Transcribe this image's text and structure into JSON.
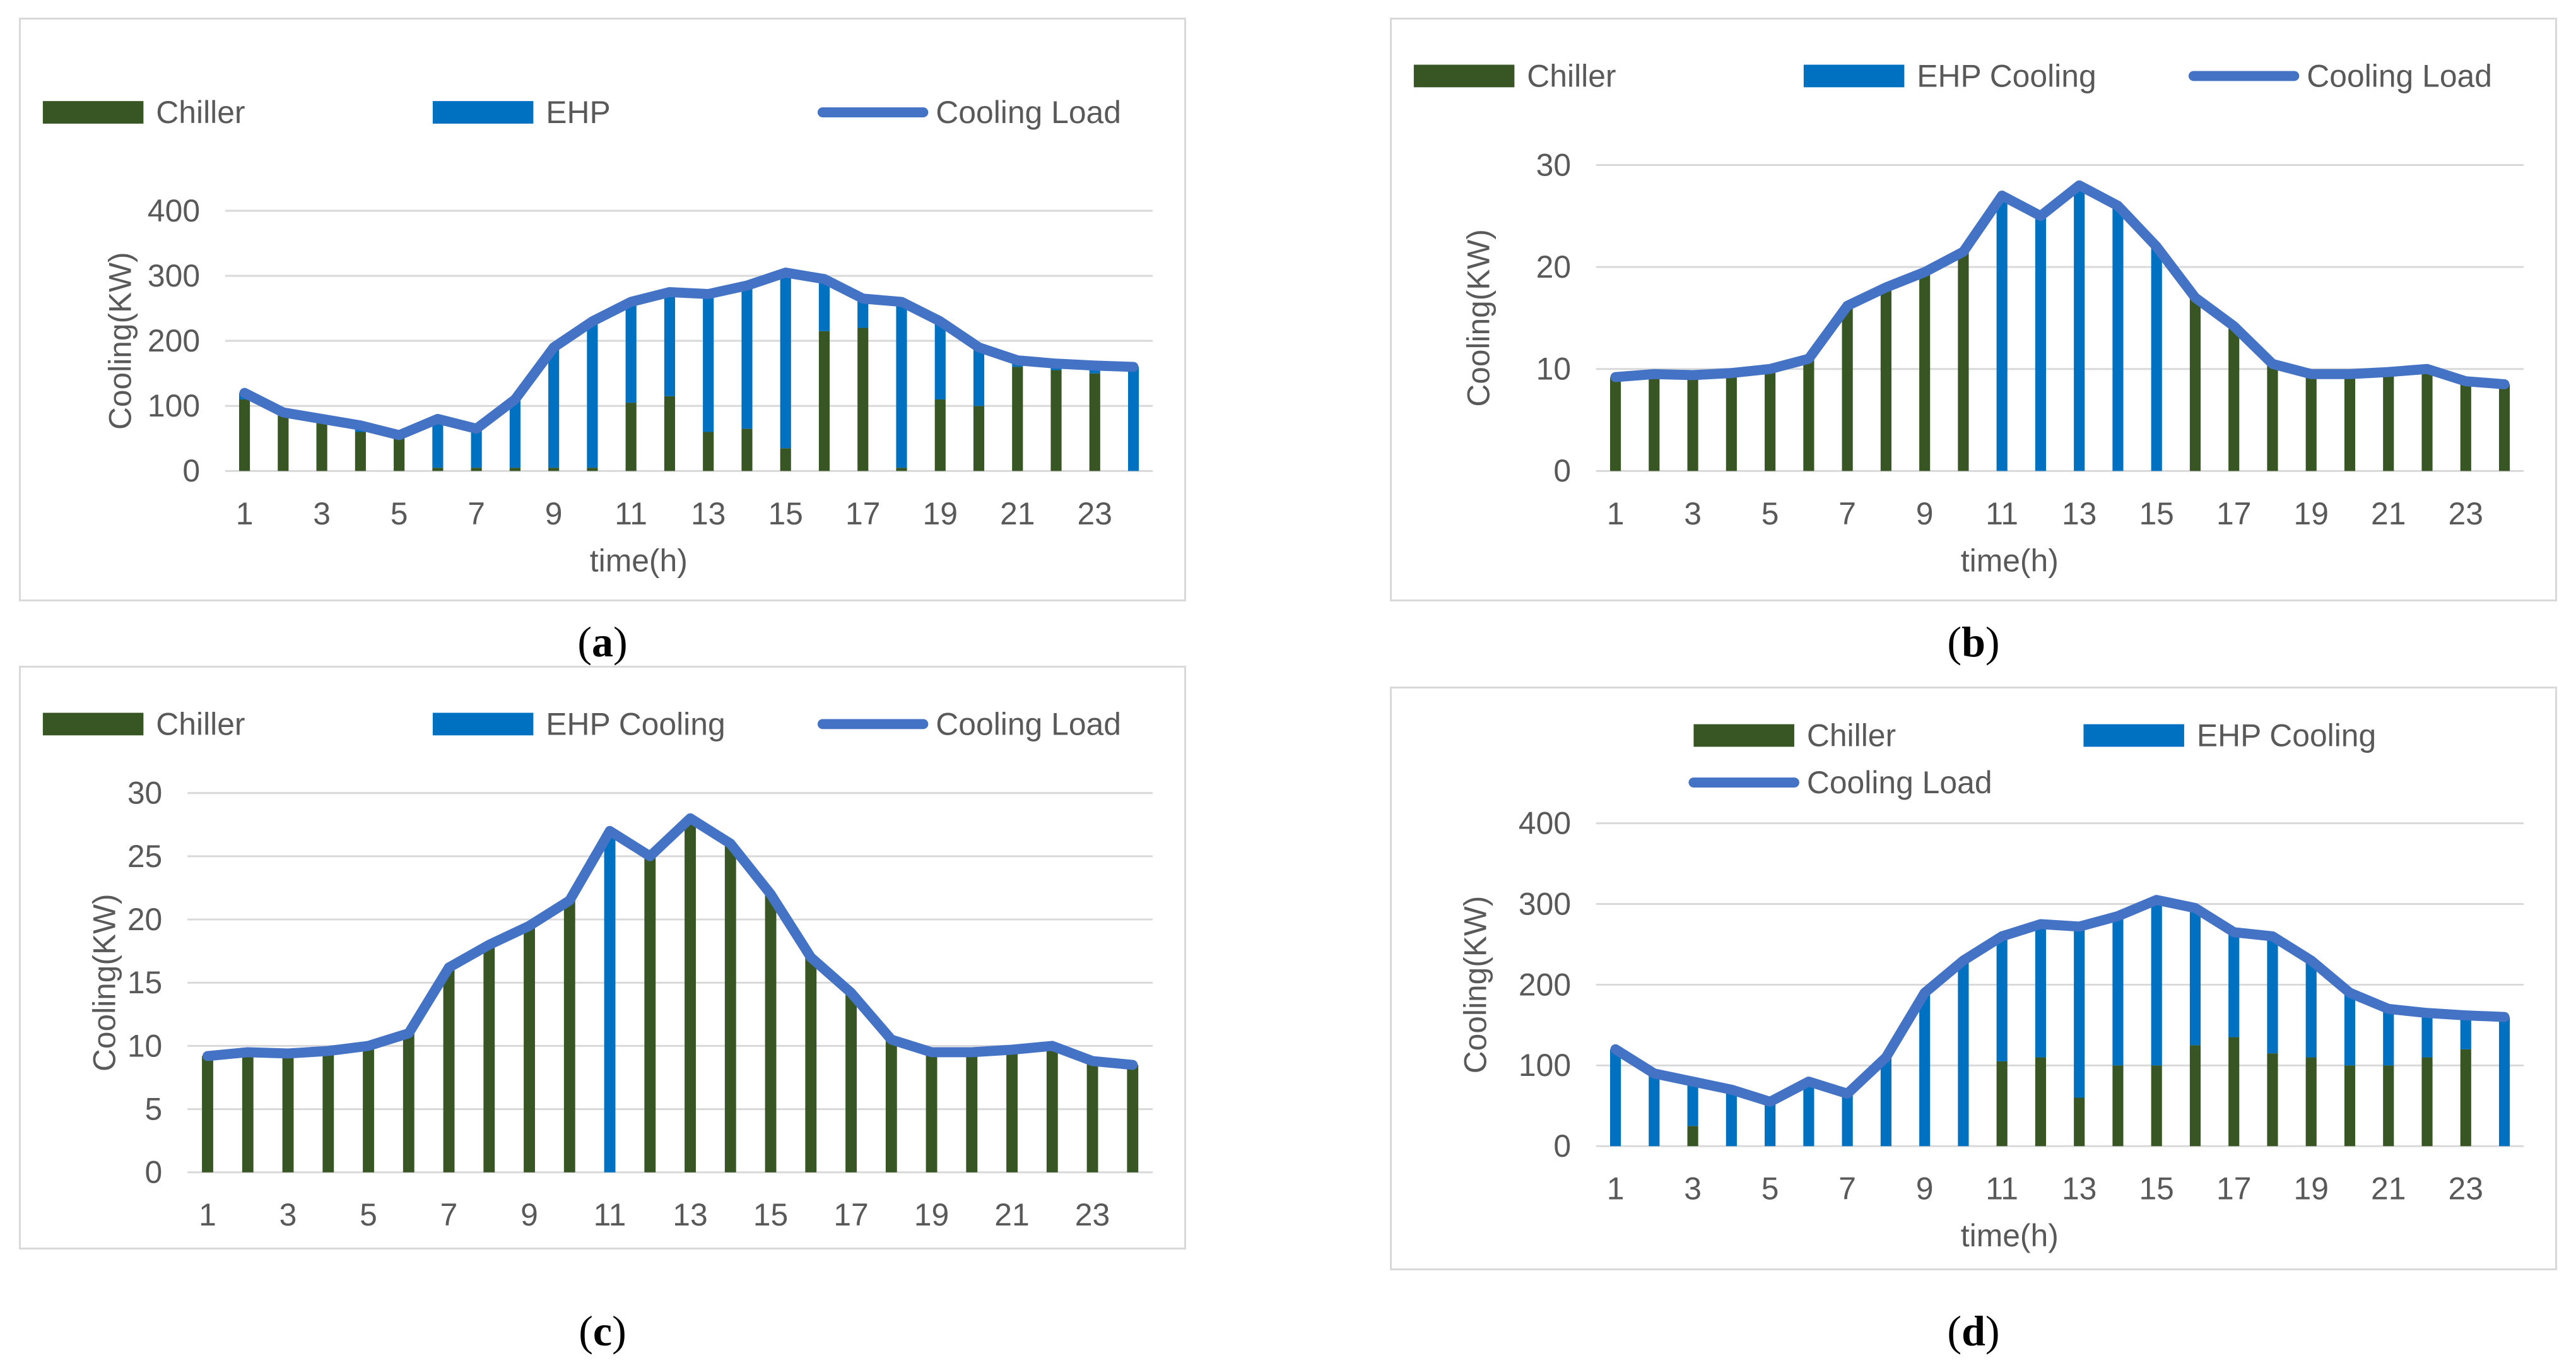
{
  "chart_data": [
    {
      "id": "a",
      "caption": "a",
      "type": "bar",
      "xlabel": "time(h)",
      "ylabel": "Cooling(KW)",
      "ylim": [
        0,
        400
      ],
      "yticks": [
        "0",
        "100",
        "200",
        "300",
        "400"
      ],
      "xtick_labels": [
        "1",
        "3",
        "5",
        "7",
        "9",
        "11",
        "13",
        "15",
        "17",
        "19",
        "21",
        "23"
      ],
      "legend_position": "top",
      "legend_rows": [
        [
          0,
          1,
          2
        ]
      ],
      "series": [
        {
          "name": "Chiller",
          "kind": "bar",
          "color": "#375623",
          "values": [
            110,
            85,
            75,
            60,
            50,
            5,
            5,
            5,
            5,
            5,
            105,
            115,
            60,
            65,
            35,
            215,
            220,
            5,
            110,
            100,
            160,
            155,
            150,
            0
          ]
        },
        {
          "name": "EHP",
          "kind": "bar",
          "color": "#0070c0",
          "values": [
            10,
            5,
            5,
            10,
            5,
            75,
            60,
            105,
            185,
            220,
            150,
            160,
            215,
            220,
            270,
            80,
            45,
            255,
            120,
            90,
            10,
            10,
            10,
            160
          ]
        },
        {
          "name": "Cooling Load",
          "kind": "line",
          "color": "#4472c4",
          "values": [
            120,
            90,
            80,
            70,
            55,
            80,
            65,
            110,
            190,
            230,
            260,
            275,
            272,
            285,
            305,
            295,
            265,
            260,
            230,
            190,
            170,
            165,
            162,
            160
          ]
        }
      ]
    },
    {
      "id": "b",
      "caption": "b",
      "type": "bar",
      "xlabel": "time(h)",
      "ylabel": "Cooling(KW)",
      "ylim": [
        0,
        30
      ],
      "yticks": [
        "0",
        "10",
        "20",
        "30"
      ],
      "xtick_labels": [
        "1",
        "3",
        "5",
        "7",
        "9",
        "11",
        "13",
        "15",
        "17",
        "19",
        "21",
        "23"
      ],
      "legend_position": "top",
      "legend_rows": [
        [
          0,
          1,
          2
        ]
      ],
      "series": [
        {
          "name": "Chiller",
          "kind": "bar",
          "color": "#375623",
          "values": [
            9.2,
            9.5,
            9.4,
            9.6,
            10.0,
            11.0,
            16.2,
            18.0,
            19.5,
            21.5,
            0,
            0,
            0,
            0,
            0,
            17.0,
            14.2,
            10.5,
            9.5,
            9.5,
            9.7,
            10.0,
            8.8,
            8.5
          ]
        },
        {
          "name": "EHP Cooling",
          "kind": "bar",
          "color": "#0070c0",
          "values": [
            0,
            0,
            0,
            0,
            0,
            0,
            0,
            0,
            0,
            0,
            27.0,
            25.0,
            28.0,
            26.0,
            22.0,
            0,
            0,
            0,
            0,
            0,
            0,
            0,
            0,
            0
          ]
        },
        {
          "name": "Cooling Load",
          "kind": "line",
          "color": "#4472c4",
          "values": [
            9.2,
            9.5,
            9.4,
            9.6,
            10.0,
            11.0,
            16.2,
            18.0,
            19.5,
            21.5,
            27.0,
            25.0,
            28.0,
            26.0,
            22.0,
            17.0,
            14.2,
            10.5,
            9.5,
            9.5,
            9.7,
            10.0,
            8.8,
            8.5
          ]
        }
      ]
    },
    {
      "id": "c",
      "caption": "c",
      "type": "bar",
      "xlabel": "time(h)",
      "ylabel": "Cooling(KW)",
      "ylim": [
        0,
        30
      ],
      "yticks": [
        "0",
        "5",
        "10",
        "15",
        "20",
        "25",
        "30"
      ],
      "xtick_labels": [
        "1",
        "3",
        "5",
        "7",
        "9",
        "11",
        "13",
        "15",
        "17",
        "19",
        "21",
        "23"
      ],
      "legend_position": "top",
      "legend_rows": [
        [
          0,
          1,
          2
        ]
      ],
      "series": [
        {
          "name": "Chiller",
          "kind": "bar",
          "color": "#375623",
          "values": [
            9.2,
            9.5,
            9.4,
            9.6,
            10.0,
            11.0,
            16.2,
            18.0,
            19.5,
            21.5,
            0,
            25.0,
            28.0,
            26.0,
            22.0,
            17.0,
            14.2,
            10.5,
            9.5,
            9.5,
            9.7,
            10.0,
            8.8,
            8.5
          ]
        },
        {
          "name": "EHP Cooling",
          "kind": "bar",
          "color": "#0070c0",
          "values": [
            0,
            0,
            0,
            0,
            0,
            0,
            0,
            0,
            0,
            0,
            27.0,
            0,
            0,
            0,
            0,
            0,
            0,
            0,
            0,
            0,
            0,
            0,
            0,
            0
          ]
        },
        {
          "name": "Cooling Load",
          "kind": "line",
          "color": "#4472c4",
          "values": [
            9.2,
            9.5,
            9.4,
            9.6,
            10.0,
            11.0,
            16.2,
            18.0,
            19.5,
            21.5,
            27.0,
            25.0,
            28.0,
            26.0,
            22.0,
            17.0,
            14.2,
            10.5,
            9.5,
            9.5,
            9.7,
            10.0,
            8.8,
            8.5
          ]
        }
      ]
    },
    {
      "id": "d",
      "caption": "d",
      "type": "bar",
      "xlabel": "time(h)",
      "ylabel": "Cooling(KW)",
      "ylim": [
        0,
        400
      ],
      "yticks": [
        "0",
        "100",
        "200",
        "300",
        "400"
      ],
      "xtick_labels": [
        "1",
        "3",
        "5",
        "7",
        "9",
        "11",
        "13",
        "15",
        "17",
        "19",
        "21",
        "23"
      ],
      "legend_position": "top",
      "legend_rows": [
        [
          0,
          1
        ],
        [
          2
        ]
      ],
      "series": [
        {
          "name": "Chiller",
          "kind": "bar",
          "color": "#375623",
          "values": [
            0,
            0,
            25,
            0,
            0,
            0,
            0,
            0,
            0,
            0,
            105,
            110,
            60,
            100,
            100,
            125,
            135,
            115,
            110,
            100,
            100,
            110,
            120,
            0
          ]
        },
        {
          "name": "EHP Cooling",
          "kind": "bar",
          "color": "#0070c0",
          "values": [
            120,
            90,
            55,
            70,
            55,
            80,
            65,
            110,
            190,
            230,
            155,
            165,
            212,
            185,
            205,
            170,
            130,
            145,
            120,
            90,
            70,
            55,
            42,
            160
          ]
        },
        {
          "name": "Cooling Load",
          "kind": "line",
          "color": "#4472c4",
          "values": [
            120,
            90,
            80,
            70,
            55,
            80,
            65,
            110,
            190,
            230,
            260,
            275,
            272,
            285,
            305,
            295,
            265,
            260,
            230,
            190,
            170,
            165,
            162,
            160
          ]
        }
      ]
    }
  ]
}
